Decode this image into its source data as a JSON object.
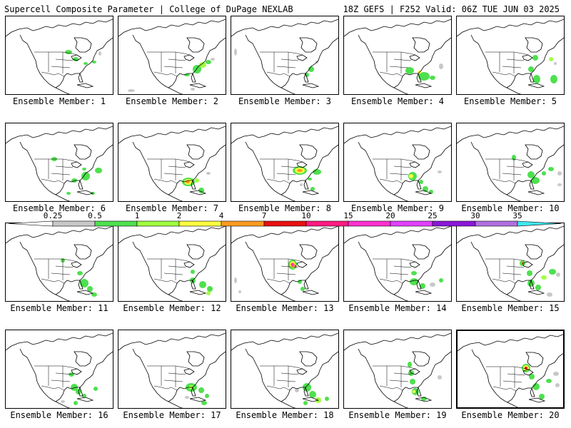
{
  "header": {
    "left": "Supercell Composite Parameter | College of DuPage NEXLAB",
    "right": "18Z GEFS | F252 Valid: 06Z TUE JUN 03 2025"
  },
  "legend": {
    "ticks": [
      "0.25",
      "0.5",
      "1",
      "2",
      "4",
      "7",
      "10",
      "15",
      "20",
      "25",
      "30",
      "35"
    ],
    "colors": [
      "#c8c8c8",
      "#4ee04e",
      "#a0ff40",
      "#ffff40",
      "#ff9a20",
      "#e81010",
      "#ff1a80",
      "#ff30d0",
      "#e040ff",
      "#8a18d8",
      "#b070e0",
      "#40e8f0"
    ]
  },
  "panels": [
    {
      "label": "Ensemble Member: 1",
      "member": 1
    },
    {
      "label": "Ensemble Member: 2",
      "member": 2
    },
    {
      "label": "Ensemble Member: 3",
      "member": 3
    },
    {
      "label": "Ensemble Member: 4",
      "member": 4
    },
    {
      "label": "Ensemble Member: 5",
      "member": 5
    },
    {
      "label": "Ensemble Member: 6",
      "member": 6
    },
    {
      "label": "Ensemble Member: 7",
      "member": 7
    },
    {
      "label": "Ensemble Member: 8",
      "member": 8
    },
    {
      "label": "Ensemble Member: 9",
      "member": 9
    },
    {
      "label": "Ensemble Member: 10",
      "member": 10
    },
    {
      "label": "Ensemble Member: 11",
      "member": 11
    },
    {
      "label": "Ensemble Member: 12",
      "member": 12
    },
    {
      "label": "Ensemble Member: 13",
      "member": 13
    },
    {
      "label": "Ensemble Member: 14",
      "member": 14
    },
    {
      "label": "Ensemble Member: 15",
      "member": 15
    },
    {
      "label": "Ensemble Member: 16",
      "member": 16
    },
    {
      "label": "Ensemble Member: 17",
      "member": 17
    },
    {
      "label": "Ensemble Member: 18",
      "member": 18
    },
    {
      "label": "Ensemble Member: 19",
      "member": 19
    },
    {
      "label": "Ensemble Member: 20",
      "member": 20
    }
  ]
}
